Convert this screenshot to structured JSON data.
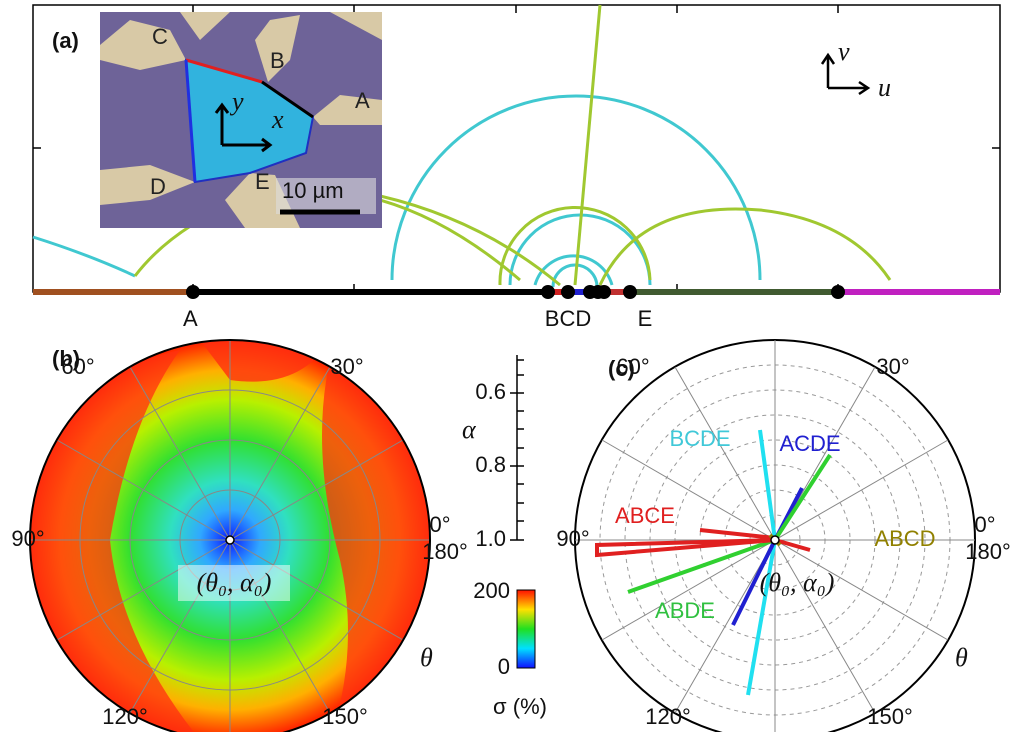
{
  "panel_a": {
    "label": "(a)",
    "inset": {
      "points": [
        "C",
        "B",
        "A",
        "D",
        "E"
      ],
      "x_axis": "x",
      "y_axis": "y",
      "scale_bar": "10 µm"
    },
    "axes": {
      "u": "u",
      "v": "v"
    },
    "edge_points": [
      "A",
      "BCD",
      "E"
    ]
  },
  "panel_b": {
    "label": "(b)",
    "angles": [
      "60°",
      "30°",
      "0°",
      "180°",
      "90°",
      "120°",
      "150°"
    ],
    "center_label": "(θ₀, α₀)",
    "theta": "θ"
  },
  "alpha_axis": {
    "label": "α",
    "ticks": [
      "0.6",
      "0.8",
      "1.0"
    ]
  },
  "colorbar": {
    "ticks": [
      "200",
      "0"
    ],
    "label": "σ (%)"
  },
  "panel_c": {
    "label": "(c)",
    "angles": [
      "60°",
      "30°",
      "0°",
      "180°",
      "90°",
      "120°",
      "150°"
    ],
    "center_label": "(θ₀, α₀)",
    "theta": "θ",
    "traces": [
      "BCDE",
      "ACDE",
      "ABCE",
      "ABCD",
      "ABDE"
    ]
  }
}
